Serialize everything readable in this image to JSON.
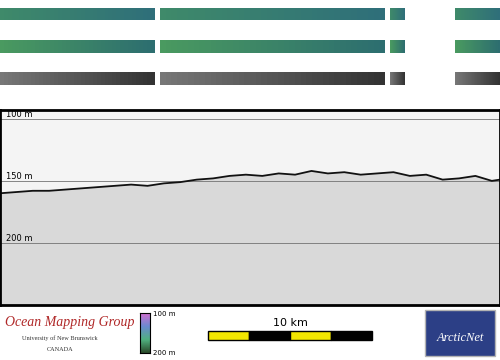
{
  "chart_data": {
    "type": "line",
    "x": [
      0,
      1,
      2,
      3,
      4,
      5,
      6,
      7,
      8,
      9,
      10,
      11,
      12,
      13,
      14,
      15,
      16,
      17,
      18,
      19,
      20,
      21,
      22,
      23,
      24,
      25,
      26,
      27,
      28,
      29,
      30,
      30.5
    ],
    "values": [
      160,
      159,
      158,
      158,
      157,
      156,
      155,
      154,
      153,
      154,
      152,
      151,
      149,
      148,
      146,
      145,
      146,
      144,
      145,
      142,
      144,
      143,
      145,
      144,
      143,
      146,
      145,
      149,
      148,
      146,
      150,
      149
    ],
    "xlim": [
      0,
      30.5
    ],
    "ylim": [
      250,
      93
    ],
    "yticks": [
      {
        "value": 100,
        "label": "100 m"
      },
      {
        "value": 150,
        "label": "150 m"
      },
      {
        "value": 200,
        "label": "200 m"
      }
    ],
    "grid": true,
    "tick_labels": "y",
    "color": "#111111",
    "colorbar": {
      "range": [
        100,
        200
      ],
      "ticks": [
        {
          "value": 100,
          "label": "100 m"
        },
        {
          "value": 200,
          "label": "200 m"
        }
      ]
    }
  },
  "scale_bar": {
    "length": 10,
    "label": "10 km"
  },
  "logos": {
    "left": {
      "title": "Ocean Mapping Group",
      "lines": [
        "University of New Brunswick",
        "CANADA"
      ]
    },
    "right": "ArcticNet"
  }
}
